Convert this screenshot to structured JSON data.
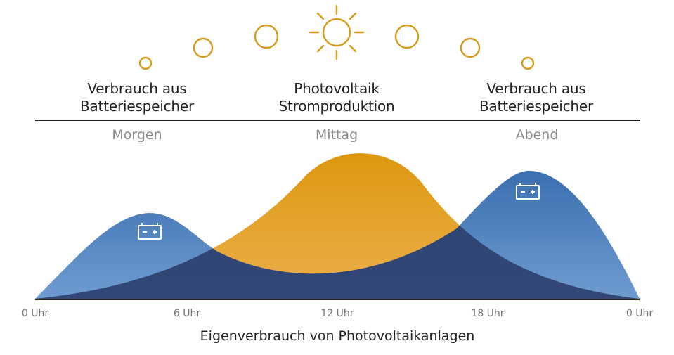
{
  "headings": {
    "left": {
      "line1": "Verbrauch aus",
      "line2": "Batteriespeicher"
    },
    "center": {
      "line1": "Photovoltaik",
      "line2": "Stromproduktion"
    },
    "right": {
      "line1": "Verbrauch aus",
      "line2": "Batteriespeicher"
    }
  },
  "periods": {
    "morning": "Morgen",
    "noon": "Mittag",
    "evening": "Abend"
  },
  "x_axis": {
    "ticks": [
      "0 Uhr",
      "6 Uhr",
      "12 Uhr",
      "18 Uhr",
      "0 Uhr"
    ]
  },
  "caption": "Eigenverbrauch von Photovoltaikanlagen",
  "colors": {
    "sun": "#d89a1a",
    "solar_curve": "#e5a22a",
    "battery_curve": "#3f74b5",
    "overlap": "#2b3e6b",
    "text": "#222222",
    "muted_text": "#8a8a8a"
  },
  "icons": [
    "sun-icon",
    "battery-icon"
  ]
}
